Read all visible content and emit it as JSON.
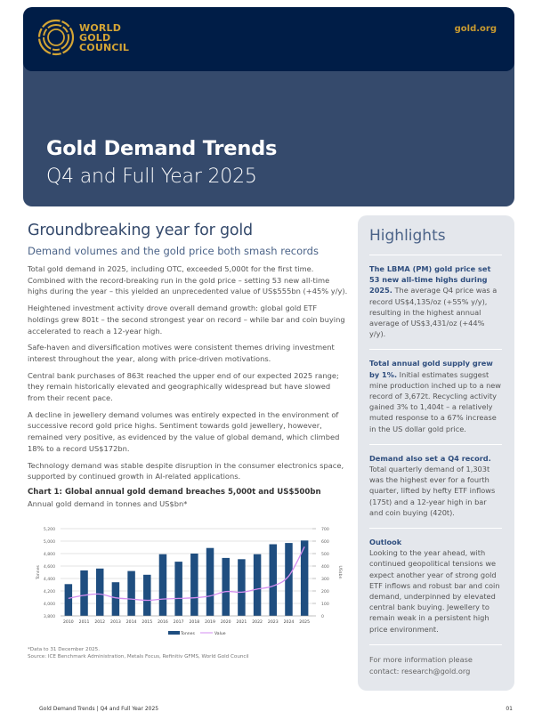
{
  "header": {
    "logo_lines": [
      "WORLD",
      "GOLD",
      "COUNCIL"
    ],
    "site_link": "gold.org",
    "title": "Gold Demand Trends",
    "subtitle": "Q4 and Full Year 2025",
    "colors": {
      "navy": "#001d47",
      "slate": "#354a6c",
      "gold": "#d4a535"
    }
  },
  "main": {
    "heading": "Groundbreaking year for gold",
    "subheading": "Demand volumes and the gold price both smash records",
    "paragraphs": [
      "Total gold demand in 2025, including OTC, exceeded 5,000t for the first time. Combined with the record-breaking run in the gold price – setting 53 new all-time highs during the year – this yielded an unprecedented value of US$555bn (+45% y/y).",
      "Heightened investment activity drove overall demand growth: global gold ETF holdings grew 801t – the second strongest year on record – while bar and coin buying accelerated to reach a 12-year high.",
      "Safe-haven and diversification motives were consistent themes driving investment interest throughout the year, along with price-driven motivations.",
      "Central bank purchases of 863t reached the upper end of our expected 2025 range; they remain historically elevated and geographically widespread but have slowed from their recent pace.",
      "A decline in jewellery demand volumes was entirely expected in the environment of successive record gold price highs. Sentiment towards gold jewellery, however, remained very positive, as evidenced by the value of global demand, which climbed 18% to a record US$172bn.",
      "Technology demand was stable despite disruption in the consumer electronics space, supported by continued growth in AI-related applications."
    ],
    "chart_title": "Chart 1: Global annual gold demand breaches 5,000t and US$500bn",
    "chart_subtitle": "Annual gold demand in tonnes and US$bn*",
    "footnote": "*Data to 31 December 2025.",
    "source": "Source: ICE Benchmark Administration, Metals Focus, Refinitiv GFMS, World Gold Council"
  },
  "chart_data": {
    "type": "bar",
    "title": "Chart 1: Global annual gold demand breaches 5,000t and US$500bn",
    "subtitle": "Annual gold demand in tonnes and US$bn*",
    "categories": [
      "2010",
      "2011",
      "2012",
      "2013",
      "2014",
      "2015",
      "2016",
      "2017",
      "2018",
      "2019",
      "2020",
      "2021",
      "2022",
      "2023",
      "2024",
      "2025"
    ],
    "series": [
      {
        "name": "Tonnes",
        "type": "bar",
        "axis": "left",
        "color": "#1f4e80",
        "values": [
          4310,
          4530,
          4560,
          4340,
          4520,
          4460,
          4790,
          4670,
          4800,
          4890,
          4730,
          4710,
          4790,
          4950,
          4970,
          5010
        ]
      },
      {
        "name": "Value",
        "type": "line",
        "axis": "right",
        "color": "#d48ef0",
        "values": [
          140,
          165,
          175,
          145,
          135,
          125,
          135,
          140,
          145,
          160,
          195,
          190,
          215,
          240,
          320,
          555
        ]
      }
    ],
    "ylabel": "Tonnes",
    "y2label": "US$bn",
    "ylim": [
      3800,
      5200
    ],
    "y2lim": [
      0,
      700
    ],
    "yticks": [
      "3,800",
      "4,000",
      "4,200",
      "4,400",
      "4,600",
      "4,800",
      "5,000",
      "5,200"
    ],
    "y2ticks": [
      "0",
      "100",
      "200",
      "300",
      "400",
      "500",
      "600",
      "700"
    ],
    "grid": true,
    "legend": "bottom-center"
  },
  "highlights": {
    "heading": "Highlights",
    "items": [
      {
        "bold": "The LBMA (PM) gold price set 53 new all-time highs during 2025.",
        "text": " The average Q4 price was a record US$4,135/oz (+55% y/y), resulting in the highest annual average of US$3,431/oz (+44% y/y)."
      },
      {
        "bold": "Total annual gold supply grew by 1%.",
        "text": " Initial estimates suggest mine production inched up to a new record of 3,672t. Recycling activity gained 3% to 1,404t – a relatively muted response to a 67% increase in the US dollar gold price."
      },
      {
        "bold": "Demand also set a Q4 record.",
        "text": " Total quarterly demand of 1,303t was the highest ever for a fourth quarter, lifted by hefty ETF inflows (175t) and a 12-year high in bar and coin buying (420t)."
      }
    ],
    "outlook_title": "Outlook",
    "outlook_text": "Looking to the year ahead, with continued geopolitical tensions we expect another year of strong gold ETF inflows and robust bar and coin demand, underpinned by elevated central bank buying. Jewellery to remain weak in a persistent high price environment.",
    "contact_line1": "For more information please",
    "contact_line2": "contact: research@gold.org"
  },
  "footer": {
    "text": "Gold Demand Trends | Q4 and Full Year 2025",
    "page": "01"
  }
}
